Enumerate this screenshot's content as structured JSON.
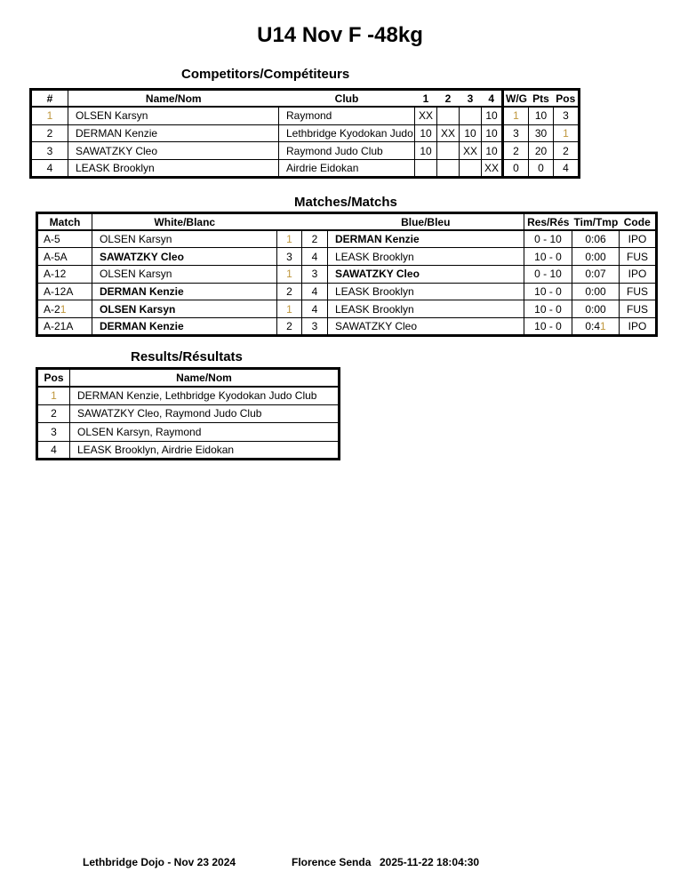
{
  "page_title": "U14 Nov F -48kg",
  "colors": {
    "text": "#000000",
    "border": "#000000",
    "background": "#ffffff",
    "tan_one_digit": "#bf963c"
  },
  "competitors": {
    "title": "Competitors/Compétiteurs",
    "headers": {
      "num": "#",
      "name": "Name/Nom",
      "club": "Club",
      "g1": "1",
      "g2": "2",
      "g3": "3",
      "g4": "4",
      "wg": "W/G",
      "pts": "Pts",
      "pos": "Pos"
    },
    "rows": [
      {
        "num": "1",
        "name": "OLSEN Karsyn",
        "club": "Raymond",
        "g1": "XX",
        "g2": "",
        "g3": "",
        "g4": "10",
        "wg": "1",
        "pts": "10",
        "pos": "3"
      },
      {
        "num": "2",
        "name": "DERMAN Kenzie",
        "club": "Lethbridge Kyodokan Judo",
        "g1": "10",
        "g2": "XX",
        "g3": "10",
        "g4": "10",
        "wg": "3",
        "pts": "30",
        "pos": "1"
      },
      {
        "num": "3",
        "name": "SAWATZKY Cleo",
        "club": "Raymond Judo Club",
        "g1": "10",
        "g2": "",
        "g3": "XX",
        "g4": "10",
        "wg": "2",
        "pts": "20",
        "pos": "2"
      },
      {
        "num": "4",
        "name": "LEASK Brooklyn",
        "club": "Airdrie Eidokan",
        "g1": "",
        "g2": "",
        "g3": "",
        "g4": "XX",
        "wg": "0",
        "pts": "0",
        "pos": "4"
      }
    ]
  },
  "matches": {
    "title": "Matches/Matchs",
    "headers": {
      "match": "Match",
      "white": "White/Blanc",
      "blue": "Blue/Bleu",
      "res": "Res/Rés",
      "time": "Tim/Tmp",
      "code": "Code"
    },
    "rows": [
      {
        "match": "A-5",
        "white": "OLSEN Karsyn",
        "white_bold": false,
        "wnum": "1",
        "bnum": "2",
        "blue": "DERMAN Kenzie",
        "blue_bold": true,
        "res": "0 - 10",
        "time": "0:06",
        "code": "IPO"
      },
      {
        "match": "A-5A",
        "white": "SAWATZKY Cleo",
        "white_bold": true,
        "wnum": "3",
        "bnum": "4",
        "blue": "LEASK Brooklyn",
        "blue_bold": false,
        "res": "10 - 0",
        "time": "0:00",
        "code": "FUS"
      },
      {
        "match": "A-12",
        "white": "OLSEN Karsyn",
        "white_bold": false,
        "wnum": "1",
        "bnum": "3",
        "blue": "SAWATZKY Cleo",
        "blue_bold": true,
        "res": "0 - 10",
        "time": "0:07",
        "code": "IPO"
      },
      {
        "match": "A-12A",
        "white": "DERMAN Kenzie",
        "white_bold": true,
        "wnum": "2",
        "bnum": "4",
        "blue": "LEASK Brooklyn",
        "blue_bold": false,
        "res": "10 - 0",
        "time": "0:00",
        "code": "FUS"
      },
      {
        "match": "A-21",
        "white": "OLSEN Karsyn",
        "white_bold": true,
        "wnum": "1",
        "bnum": "4",
        "blue": "LEASK Brooklyn",
        "blue_bold": false,
        "res": "10 - 0",
        "time": "0:00",
        "code": "FUS"
      },
      {
        "match": "A-21A",
        "white": "DERMAN Kenzie",
        "white_bold": true,
        "wnum": "2",
        "bnum": "3",
        "blue": "SAWATZKY Cleo",
        "blue_bold": false,
        "res": "10 - 0",
        "time": "0:41",
        "code": "IPO"
      }
    ]
  },
  "results": {
    "title": "Results/Résultats",
    "headers": {
      "pos": "Pos",
      "name": "Name/Nom"
    },
    "rows": [
      {
        "pos": "1",
        "name": "DERMAN Kenzie, Lethbridge Kyodokan Judo Club"
      },
      {
        "pos": "2",
        "name": "SAWATZKY Cleo, Raymond Judo Club"
      },
      {
        "pos": "3",
        "name": "OLSEN Karsyn, Raymond"
      },
      {
        "pos": "4",
        "name": "LEASK Brooklyn, Airdrie Eidokan"
      }
    ]
  },
  "footer": {
    "venue_date": "Lethbridge Dojo - Nov 23 2024",
    "official": "Florence Senda",
    "generated": "2025-11-22 18:04:30"
  }
}
